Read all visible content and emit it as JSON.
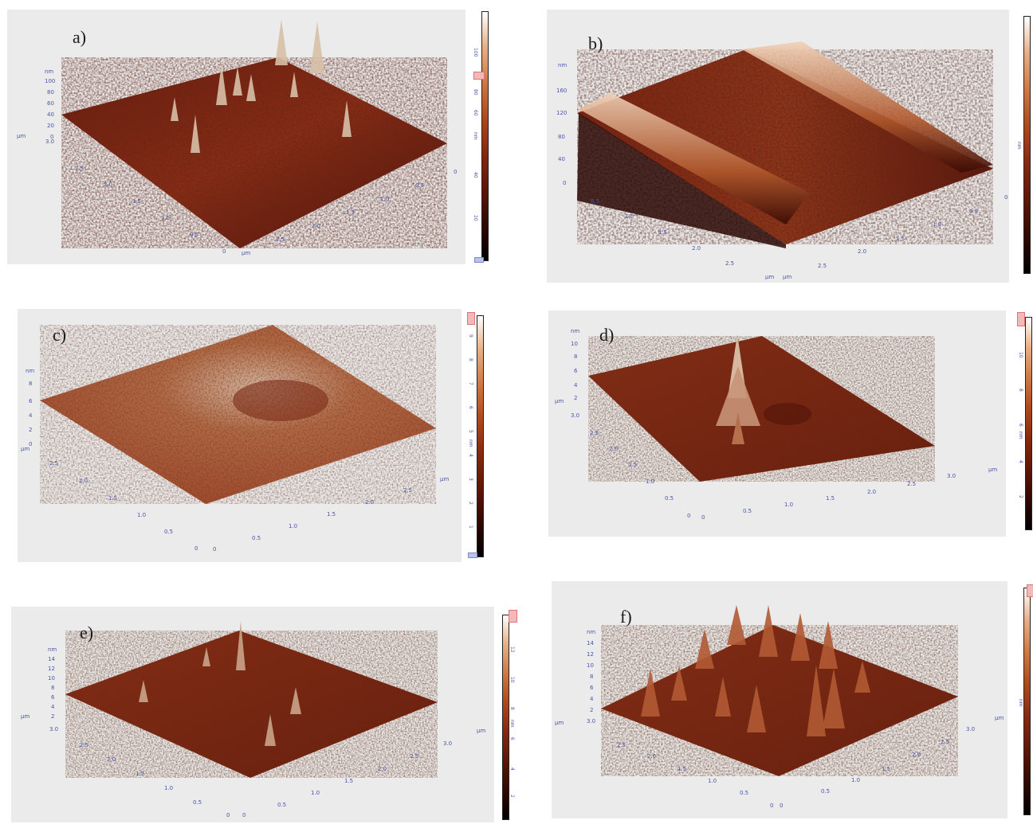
{
  "colors": {
    "panel_bg": "#ebebeb",
    "axis_text": "#4a55a8",
    "surface_dark": "#3a0a04",
    "surface_mid": "#8a2a12",
    "surface_light": "#e8c4a8"
  },
  "panels": [
    {
      "id": "a",
      "label": "a)",
      "z_unit": "nm",
      "z_ticks": [
        "100",
        "80",
        "60",
        "40",
        "20",
        "0"
      ],
      "z_bottom": "3.0",
      "left_unit": "µm",
      "left_ticks": [
        "2.5",
        "2.0",
        "1.5",
        "1.0",
        "0.5",
        "0"
      ],
      "right_unit": "µm",
      "right_ticks": [
        "2.5",
        "2.0",
        "1.5",
        "1.0",
        "0.5",
        "0"
      ],
      "cbar_unit": "nm",
      "cbar_ticks": [
        "100",
        "80",
        "60",
        "40",
        "20"
      ]
    },
    {
      "id": "b",
      "label": "b)",
      "z_unit": "nm",
      "z_ticks": [
        "160",
        "120",
        "80",
        "40",
        "0"
      ],
      "z_bottom": "",
      "left_unit": "µm",
      "left_ticks": [
        "0.5",
        "1.0",
        "1.5",
        "2.0",
        "2.5"
      ],
      "right_unit": "µm",
      "right_ticks": [
        "2.5",
        "2.0",
        "1.5",
        "1.0",
        "0.5",
        "0"
      ],
      "cbar_unit": "nm",
      "cbar_ticks": []
    },
    {
      "id": "c",
      "label": "c)",
      "z_unit": "nm",
      "z_ticks": [
        "8",
        "6",
        "4",
        "2",
        "0"
      ],
      "z_bottom": "",
      "left_unit": "µm",
      "left_ticks": [
        "2.5",
        "2.0",
        "1.5",
        "1.0",
        "0.5",
        "0"
      ],
      "right_unit": "µm",
      "right_ticks": [
        "0",
        "0.5",
        "1.0",
        "1.5",
        "2.0",
        "2.5"
      ],
      "cbar_unit": "nm",
      "cbar_ticks": [
        "9",
        "8",
        "7",
        "6",
        "5",
        "4",
        "3",
        "2",
        "1"
      ]
    },
    {
      "id": "d",
      "label": "d)",
      "z_unit": "nm",
      "z_ticks": [
        "10",
        "8",
        "6",
        "4",
        "2"
      ],
      "z_bottom": "3.0",
      "left_unit": "µm",
      "left_ticks": [
        "2.5",
        "2.0",
        "1.5",
        "1.0",
        "0.5",
        "0"
      ],
      "right_unit": "µm",
      "right_ticks": [
        "0",
        "0.5",
        "1.0",
        "1.5",
        "2.0",
        "2.5",
        "3.0"
      ],
      "cbar_unit": "nm",
      "cbar_ticks": [
        "10",
        "8",
        "6",
        "4",
        "2"
      ]
    },
    {
      "id": "e",
      "label": "e)",
      "z_unit": "nm",
      "z_ticks": [
        "14",
        "12",
        "10",
        "8",
        "6",
        "4",
        "2"
      ],
      "z_bottom": "3.0",
      "left_unit": "µm",
      "left_ticks": [
        "2.5",
        "2.0",
        "1.5",
        "1.0",
        "0.5",
        "0"
      ],
      "right_unit": "µm",
      "right_ticks": [
        "0",
        "0.5",
        "1.0",
        "1.5",
        "2.0",
        "2.5",
        "3.0"
      ],
      "cbar_unit": "nm",
      "cbar_ticks": [
        "12",
        "10",
        "8",
        "6",
        "4",
        "2"
      ]
    },
    {
      "id": "f",
      "label": "f)",
      "z_unit": "nm",
      "z_ticks": [
        "14",
        "12",
        "10",
        "8",
        "6",
        "4",
        "2"
      ],
      "z_bottom": "3.0",
      "left_unit": "µm",
      "left_ticks": [
        "2.5",
        "2.0",
        "1.5",
        "1.0",
        "0.5",
        "0"
      ],
      "right_unit": "µm",
      "right_ticks": [
        "0",
        "0.5",
        "1.0",
        "1.5",
        "2.0",
        "2.5",
        "3.0"
      ],
      "cbar_unit": "nm",
      "cbar_ticks": []
    }
  ]
}
